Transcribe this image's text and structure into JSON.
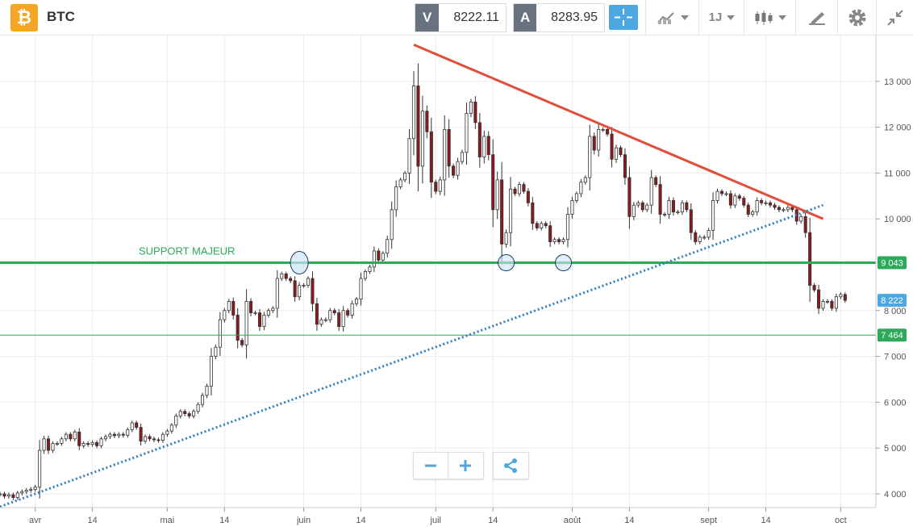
{
  "header": {
    "coin_icon": "bitcoin-icon",
    "coin_glyph": "₿",
    "symbol": "BTC",
    "bid_badge": "V",
    "bid_value": "8222.11",
    "ask_badge": "A",
    "ask_value": "8283.95",
    "interval_label": "1J"
  },
  "toolbar_icons": [
    "crosshair-icon",
    "chart-type-icon",
    "candlestick-icon",
    "drawing-icon",
    "gear-icon",
    "collapse-icon"
  ],
  "colors": {
    "bull": "#ffffff",
    "bear": "#8b1a1a",
    "support": "#2ea85a",
    "resistance": "#e04e3c",
    "trendline": "#2f7fbf",
    "price_tag": "#4da7e0",
    "accent": "#4da7e0"
  },
  "chart_data": {
    "type": "candlestick",
    "instrument": "BTC",
    "timeframe": "1J",
    "ylim": [
      3700,
      14000
    ],
    "y_ticks": [
      4000,
      5000,
      6000,
      7000,
      8000,
      10000,
      11000,
      12000,
      13000
    ],
    "y_tick_labels": [
      "4 000",
      "5 000",
      "6 000",
      "7 000",
      "8 000",
      "10 000",
      "11 000",
      "12 000",
      "13 000"
    ],
    "x_ticks": [
      {
        "date": "2019-04-01",
        "label": "avr"
      },
      {
        "date": "2019-04-14",
        "label": "14"
      },
      {
        "date": "2019-05-01",
        "label": "mai"
      },
      {
        "date": "2019-05-14",
        "label": "14"
      },
      {
        "date": "2019-06-01",
        "label": "juin"
      },
      {
        "date": "2019-06-14",
        "label": "14"
      },
      {
        "date": "2019-07-01",
        "label": "juil"
      },
      {
        "date": "2019-07-14",
        "label": "14"
      },
      {
        "date": "2019-08-01",
        "label": "août"
      },
      {
        "date": "2019-08-14",
        "label": "14"
      },
      {
        "date": "2019-09-01",
        "label": "sept"
      },
      {
        "date": "2019-09-14",
        "label": "14"
      },
      {
        "date": "2019-10-01",
        "label": "oct"
      }
    ],
    "x_range": [
      "2019-03-24",
      "2019-10-09"
    ],
    "closes": [
      {
        "date": "2019-03-24",
        "close": 4000
      },
      {
        "date": "2019-03-25",
        "close": 3950
      },
      {
        "date": "2019-03-26",
        "close": 3980
      },
      {
        "date": "2019-03-27",
        "close": 3920
      },
      {
        "date": "2019-03-28",
        "close": 4020
      },
      {
        "date": "2019-03-29",
        "close": 4050
      },
      {
        "date": "2019-03-30",
        "close": 4080
      },
      {
        "date": "2019-03-31",
        "close": 4100
      },
      {
        "date": "2019-04-01",
        "close": 4150
      },
      {
        "date": "2019-04-02",
        "close": 4950
      },
      {
        "date": "2019-04-03",
        "close": 5200
      },
      {
        "date": "2019-04-04",
        "close": 4950
      },
      {
        "date": "2019-04-05",
        "close": 5100
      },
      {
        "date": "2019-04-06",
        "close": 5100
      },
      {
        "date": "2019-04-07",
        "close": 5200
      },
      {
        "date": "2019-04-08",
        "close": 5300
      },
      {
        "date": "2019-04-09",
        "close": 5200
      },
      {
        "date": "2019-04-10",
        "close": 5350
      },
      {
        "date": "2019-04-11",
        "close": 5050
      },
      {
        "date": "2019-04-12",
        "close": 5100
      },
      {
        "date": "2019-04-13",
        "close": 5080
      },
      {
        "date": "2019-04-14",
        "close": 5120
      },
      {
        "date": "2019-04-15",
        "close": 5050
      },
      {
        "date": "2019-04-16",
        "close": 5200
      },
      {
        "date": "2019-04-17",
        "close": 5250
      },
      {
        "date": "2019-04-18",
        "close": 5300
      },
      {
        "date": "2019-04-19",
        "close": 5270
      },
      {
        "date": "2019-04-20",
        "close": 5300
      },
      {
        "date": "2019-04-21",
        "close": 5280
      },
      {
        "date": "2019-04-22",
        "close": 5400
      },
      {
        "date": "2019-04-23",
        "close": 5550
      },
      {
        "date": "2019-04-24",
        "close": 5450
      },
      {
        "date": "2019-04-25",
        "close": 5150
      },
      {
        "date": "2019-04-26",
        "close": 5250
      },
      {
        "date": "2019-04-27",
        "close": 5200
      },
      {
        "date": "2019-04-28",
        "close": 5180
      },
      {
        "date": "2019-04-29",
        "close": 5170
      },
      {
        "date": "2019-04-30",
        "close": 5300
      },
      {
        "date": "2019-05-01",
        "close": 5370
      },
      {
        "date": "2019-05-02",
        "close": 5500
      },
      {
        "date": "2019-05-03",
        "close": 5700
      },
      {
        "date": "2019-05-04",
        "close": 5800
      },
      {
        "date": "2019-05-05",
        "close": 5750
      },
      {
        "date": "2019-05-06",
        "close": 5700
      },
      {
        "date": "2019-05-07",
        "close": 5800
      },
      {
        "date": "2019-05-08",
        "close": 5950
      },
      {
        "date": "2019-05-09",
        "close": 6150
      },
      {
        "date": "2019-05-10",
        "close": 6350
      },
      {
        "date": "2019-05-11",
        "close": 7000
      },
      {
        "date": "2019-05-12",
        "close": 7200
      },
      {
        "date": "2019-05-13",
        "close": 7800
      },
      {
        "date": "2019-05-14",
        "close": 8000
      },
      {
        "date": "2019-05-15",
        "close": 8200
      },
      {
        "date": "2019-05-16",
        "close": 7900
      },
      {
        "date": "2019-05-17",
        "close": 7350
      },
      {
        "date": "2019-05-18",
        "close": 7250
      },
      {
        "date": "2019-05-19",
        "close": 8200
      },
      {
        "date": "2019-05-20",
        "close": 7950
      },
      {
        "date": "2019-05-21",
        "close": 7950
      },
      {
        "date": "2019-05-22",
        "close": 7650
      },
      {
        "date": "2019-05-23",
        "close": 7900
      },
      {
        "date": "2019-05-24",
        "close": 8000
      },
      {
        "date": "2019-05-25",
        "close": 8050
      },
      {
        "date": "2019-05-26",
        "close": 8700
      },
      {
        "date": "2019-05-27",
        "close": 8800
      },
      {
        "date": "2019-05-28",
        "close": 8700
      },
      {
        "date": "2019-05-29",
        "close": 8650
      },
      {
        "date": "2019-05-30",
        "close": 8300
      },
      {
        "date": "2019-05-31",
        "close": 8550
      },
      {
        "date": "2019-06-01",
        "close": 8550
      },
      {
        "date": "2019-06-02",
        "close": 8700
      },
      {
        "date": "2019-06-03",
        "close": 8150
      },
      {
        "date": "2019-06-04",
        "close": 7700
      },
      {
        "date": "2019-06-05",
        "close": 7800
      },
      {
        "date": "2019-06-06",
        "close": 7800
      },
      {
        "date": "2019-06-07",
        "close": 8000
      },
      {
        "date": "2019-06-08",
        "close": 7950
      },
      {
        "date": "2019-06-09",
        "close": 7650
      },
      {
        "date": "2019-06-10",
        "close": 8000
      },
      {
        "date": "2019-06-11",
        "close": 7900
      },
      {
        "date": "2019-06-12",
        "close": 8150
      },
      {
        "date": "2019-06-13",
        "close": 8250
      },
      {
        "date": "2019-06-14",
        "close": 8700
      },
      {
        "date": "2019-06-15",
        "close": 8850
      },
      {
        "date": "2019-06-16",
        "close": 8950
      },
      {
        "date": "2019-06-17",
        "close": 9300
      },
      {
        "date": "2019-06-18",
        "close": 9100
      },
      {
        "date": "2019-06-19",
        "close": 9250
      },
      {
        "date": "2019-06-20",
        "close": 9550
      },
      {
        "date": "2019-06-21",
        "close": 10200
      },
      {
        "date": "2019-06-22",
        "close": 10700
      },
      {
        "date": "2019-06-23",
        "close": 10850
      },
      {
        "date": "2019-06-24",
        "close": 11000
      },
      {
        "date": "2019-06-25",
        "close": 11750
      },
      {
        "date": "2019-06-26",
        "close": 12900
      },
      {
        "date": "2019-06-27",
        "close": 11150
      },
      {
        "date": "2019-06-28",
        "close": 12350
      },
      {
        "date": "2019-06-29",
        "close": 11900
      },
      {
        "date": "2019-06-30",
        "close": 10800
      },
      {
        "date": "2019-07-01",
        "close": 10600
      },
      {
        "date": "2019-07-02",
        "close": 10850
      },
      {
        "date": "2019-07-03",
        "close": 11950
      },
      {
        "date": "2019-07-04",
        "close": 11150
      },
      {
        "date": "2019-07-05",
        "close": 10950
      },
      {
        "date": "2019-07-06",
        "close": 11250
      },
      {
        "date": "2019-07-07",
        "close": 11450
      },
      {
        "date": "2019-07-08",
        "close": 12300
      },
      {
        "date": "2019-07-09",
        "close": 12550
      },
      {
        "date": "2019-07-10",
        "close": 12100
      },
      {
        "date": "2019-07-11",
        "close": 11350
      },
      {
        "date": "2019-07-12",
        "close": 11800
      },
      {
        "date": "2019-07-13",
        "close": 11400
      },
      {
        "date": "2019-07-14",
        "close": 10200
      },
      {
        "date": "2019-07-15",
        "close": 10850
      },
      {
        "date": "2019-07-16",
        "close": 9450
      },
      {
        "date": "2019-07-17",
        "close": 9700
      },
      {
        "date": "2019-07-18",
        "close": 10650
      },
      {
        "date": "2019-07-19",
        "close": 10550
      },
      {
        "date": "2019-07-20",
        "close": 10750
      },
      {
        "date": "2019-07-21",
        "close": 10600
      },
      {
        "date": "2019-07-22",
        "close": 10350
      },
      {
        "date": "2019-07-23",
        "close": 9900
      },
      {
        "date": "2019-07-24",
        "close": 9800
      },
      {
        "date": "2019-07-25",
        "close": 9900
      },
      {
        "date": "2019-07-26",
        "close": 9850
      },
      {
        "date": "2019-07-27",
        "close": 9500
      },
      {
        "date": "2019-07-28",
        "close": 9550
      },
      {
        "date": "2019-07-29",
        "close": 9500
      },
      {
        "date": "2019-07-30",
        "close": 9550
      },
      {
        "date": "2019-07-31",
        "close": 10100
      },
      {
        "date": "2019-08-01",
        "close": 10400
      },
      {
        "date": "2019-08-02",
        "close": 10550
      },
      {
        "date": "2019-08-03",
        "close": 10800
      },
      {
        "date": "2019-08-04",
        "close": 10900
      },
      {
        "date": "2019-08-05",
        "close": 11800
      },
      {
        "date": "2019-08-06",
        "close": 11500
      },
      {
        "date": "2019-08-07",
        "close": 11950
      },
      {
        "date": "2019-08-08",
        "close": 11950
      },
      {
        "date": "2019-08-09",
        "close": 11850
      },
      {
        "date": "2019-08-10",
        "close": 11300
      },
      {
        "date": "2019-08-11",
        "close": 11550
      },
      {
        "date": "2019-08-12",
        "close": 11400
      },
      {
        "date": "2019-08-13",
        "close": 10900
      },
      {
        "date": "2019-08-14",
        "close": 10050
      },
      {
        "date": "2019-08-15",
        "close": 10300
      },
      {
        "date": "2019-08-16",
        "close": 10350
      },
      {
        "date": "2019-08-17",
        "close": 10200
      },
      {
        "date": "2019-08-18",
        "close": 10300
      },
      {
        "date": "2019-08-19",
        "close": 10900
      },
      {
        "date": "2019-08-20",
        "close": 10750
      },
      {
        "date": "2019-08-21",
        "close": 10100
      },
      {
        "date": "2019-08-22",
        "close": 10100
      },
      {
        "date": "2019-08-23",
        "close": 10400
      },
      {
        "date": "2019-08-24",
        "close": 10150
      },
      {
        "date": "2019-08-25",
        "close": 10150
      },
      {
        "date": "2019-08-26",
        "close": 10350
      },
      {
        "date": "2019-08-27",
        "close": 10200
      },
      {
        "date": "2019-08-28",
        "close": 9700
      },
      {
        "date": "2019-08-29",
        "close": 9500
      },
      {
        "date": "2019-08-30",
        "close": 9600
      },
      {
        "date": "2019-08-31",
        "close": 9600
      },
      {
        "date": "2019-09-01",
        "close": 9750
      },
      {
        "date": "2019-09-02",
        "close": 10400
      },
      {
        "date": "2019-09-03",
        "close": 10600
      },
      {
        "date": "2019-09-04",
        "close": 10550
      },
      {
        "date": "2019-09-05",
        "close": 10550
      },
      {
        "date": "2019-09-06",
        "close": 10300
      },
      {
        "date": "2019-09-07",
        "close": 10500
      },
      {
        "date": "2019-09-08",
        "close": 10450
      },
      {
        "date": "2019-09-09",
        "close": 10300
      },
      {
        "date": "2019-09-10",
        "close": 10100
      },
      {
        "date": "2019-09-11",
        "close": 10150
      },
      {
        "date": "2019-09-12",
        "close": 10400
      },
      {
        "date": "2019-09-13",
        "close": 10350
      },
      {
        "date": "2019-09-14",
        "close": 10350
      },
      {
        "date": "2019-09-15",
        "close": 10300
      },
      {
        "date": "2019-09-16",
        "close": 10250
      },
      {
        "date": "2019-09-17",
        "close": 10200
      },
      {
        "date": "2019-09-18",
        "close": 10200
      },
      {
        "date": "2019-09-19",
        "close": 10250
      },
      {
        "date": "2019-09-20",
        "close": 10200
      },
      {
        "date": "2019-09-21",
        "close": 9950
      },
      {
        "date": "2019-09-22",
        "close": 10050
      },
      {
        "date": "2019-09-23",
        "close": 9700
      },
      {
        "date": "2019-09-24",
        "close": 8550
      },
      {
        "date": "2019-09-25",
        "close": 8450
      },
      {
        "date": "2019-09-26",
        "close": 8050
      },
      {
        "date": "2019-09-27",
        "close": 8200
      },
      {
        "date": "2019-09-28",
        "close": 8200
      },
      {
        "date": "2019-09-29",
        "close": 8050
      },
      {
        "date": "2019-09-30",
        "close": 8300
      },
      {
        "date": "2019-10-01",
        "close": 8350
      },
      {
        "date": "2019-10-02",
        "close": 8222
      }
    ],
    "annotations": {
      "support_label": "SUPPORT MAJEUR",
      "support_level": 9043,
      "support_tag": "9 043",
      "lower_level": 7464,
      "lower_tag": "7 464",
      "last_price": 8222,
      "last_price_tag": "8 222",
      "resistance_line": [
        {
          "date": "2019-06-26",
          "price": 13800
        },
        {
          "date": "2019-09-27",
          "price": 10000
        }
      ],
      "rising_trendline": [
        {
          "date": "2019-03-24",
          "price": 3720
        },
        {
          "date": "2019-09-27",
          "price": 10300
        }
      ],
      "touch_points": [
        {
          "date": "2019-05-31",
          "price": 9043
        },
        {
          "date": "2019-07-17",
          "price": 9043
        },
        {
          "date": "2019-07-30",
          "price": 9043
        }
      ]
    }
  }
}
